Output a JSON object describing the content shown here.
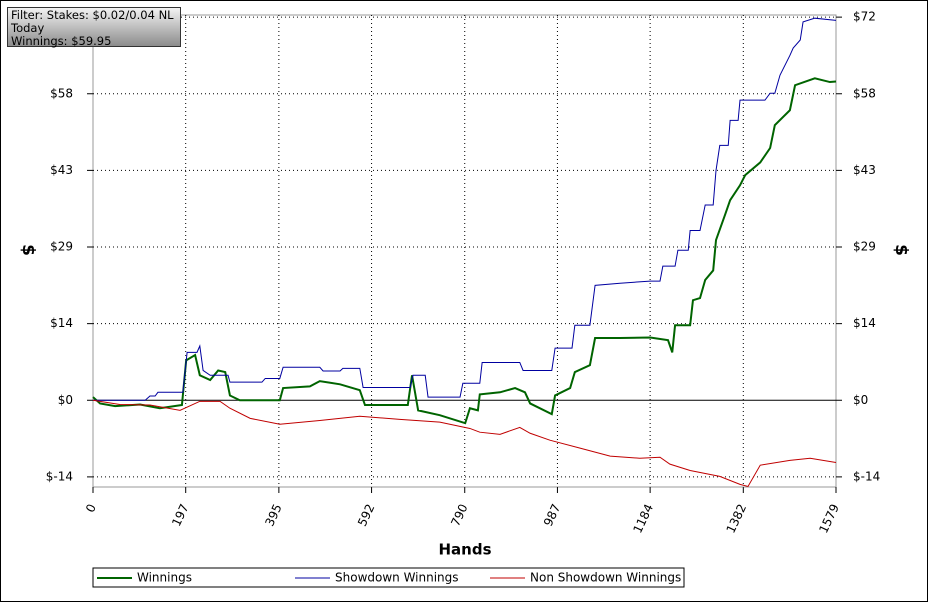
{
  "chart_data": {
    "type": "line",
    "filter_lines": [
      "Filter: Stakes: $0.02/0.04 NL",
      "Today",
      "Winnings: $59.95"
    ],
    "xlabel": "Hands",
    "ylabel": "$",
    "y2label": "$",
    "xlim": [
      0,
      1579
    ],
    "xticks": [
      0,
      197,
      395,
      592,
      790,
      987,
      1184,
      1382,
      1579
    ],
    "ylim": [
      -16.3,
      72.4
    ],
    "yticks": [
      {
        "value": -14.4,
        "label": "$-14"
      },
      {
        "value": 0,
        "label": "$0"
      },
      {
        "value": 14.4,
        "label": "$14"
      },
      {
        "value": 28.8,
        "label": "$29"
      },
      {
        "value": 43.2,
        "label": "$43"
      },
      {
        "value": 57.6,
        "label": "$58"
      },
      {
        "value": 72,
        "label": "$72"
      }
    ],
    "y2lim": [
      -16.3,
      72.4
    ],
    "y2ticks": [
      {
        "value": -14.4,
        "label": "$-14"
      },
      {
        "value": 0,
        "label": "$0"
      },
      {
        "value": 14.4,
        "label": "$14"
      },
      {
        "value": 28.8,
        "label": "$29"
      },
      {
        "value": 43.2,
        "label": "$43"
      },
      {
        "value": 57.6,
        "label": "$58"
      },
      {
        "value": 72,
        "label": "$72"
      }
    ],
    "grid": true,
    "series": [
      {
        "name": "Winnings",
        "color": "#006400",
        "width": 2,
        "x": [
          0,
          15,
          47,
          100,
          142,
          189,
          198,
          217,
          227,
          249,
          266,
          281,
          291,
          312,
          397,
          404,
          461,
          482,
          525,
          567,
          578,
          669,
          678,
          691,
          737,
          791,
          801,
          818,
          822,
          865,
          897,
          918,
          929,
          975,
          982,
          1014,
          1024,
          1056,
          1067,
          1120,
          1184,
          1222,
          1231,
          1237,
          1269,
          1275,
          1290,
          1301,
          1318,
          1324,
          1343,
          1354,
          1375,
          1386,
          1418,
          1439,
          1449,
          1481,
          1492,
          1534,
          1566,
          1579
        ],
        "values": [
          0.6,
          -0.6,
          -1.1,
          -0.8,
          -1.5,
          -0.9,
          7.5,
          8.5,
          4.7,
          3.8,
          5.6,
          5.3,
          0.9,
          0,
          0,
          2.3,
          2.6,
          3.6,
          3,
          1.9,
          -0.9,
          -0.9,
          4.7,
          -1.9,
          -2.8,
          -4.3,
          -1.5,
          -1.9,
          1.1,
          1.5,
          2.3,
          1.5,
          -0.6,
          -2.6,
          0.9,
          2.3,
          5.3,
          6.6,
          11.7,
          11.7,
          11.8,
          11.3,
          9,
          14.1,
          14.1,
          18.8,
          19.2,
          22.6,
          24.4,
          30.1,
          34.8,
          37.6,
          40.4,
          42.3,
          44.7,
          47.4,
          51.7,
          54.5,
          59.2,
          60.5,
          59.8,
          59.9
        ]
      },
      {
        "name": "Showdown Winnings",
        "color": "#0000a0",
        "width": 1,
        "x": [
          0,
          111,
          121,
          132,
          138,
          191,
          200,
          221,
          227,
          234,
          249,
          287,
          291,
          359,
          366,
          397,
          404,
          482,
          489,
          525,
          531,
          567,
          574,
          674,
          680,
          706,
          712,
          780,
          786,
          822,
          827,
          907,
          914,
          975,
          982,
          1018,
          1024,
          1056,
          1067,
          1120,
          1184,
          1205,
          1211,
          1237,
          1243,
          1265,
          1269,
          1290,
          1301,
          1318,
          1324,
          1332,
          1350,
          1354,
          1371,
          1375,
          1428,
          1439,
          1449,
          1460,
          1481,
          1488,
          1503,
          1509,
          1534,
          1579
        ],
        "values": [
          0,
          0,
          0.8,
          0.8,
          1.5,
          1.5,
          9,
          9,
          10.2,
          5.6,
          4.7,
          4.7,
          3.4,
          3.4,
          4.1,
          4.1,
          6.2,
          6.2,
          5.5,
          5.5,
          6,
          6,
          2.4,
          2.4,
          4.7,
          4.7,
          0.6,
          0.6,
          3.2,
          3.2,
          7.1,
          7.1,
          5.6,
          5.6,
          9.8,
          9.8,
          14.1,
          14.1,
          21.6,
          22,
          22.4,
          22.4,
          25.2,
          25.2,
          28.2,
          28.2,
          31.9,
          31.9,
          36.7,
          36.7,
          43.2,
          47.9,
          47.9,
          52.6,
          52.6,
          56.4,
          56.4,
          57.7,
          57.7,
          61.1,
          64.8,
          66.2,
          67.7,
          71.1,
          71.8,
          71.4
        ]
      },
      {
        "name": "Non Showdown Winnings",
        "color": "#c00000",
        "width": 1,
        "x": [
          0,
          57,
          121,
          185,
          227,
          270,
          291,
          334,
          397,
          482,
          567,
          652,
          737,
          801,
          822,
          865,
          907,
          929,
          971,
          1035,
          1099,
          1162,
          1205,
          1226,
          1269,
          1332,
          1375,
          1392,
          1418,
          1481,
          1524,
          1579
        ],
        "values": [
          0,
          -0.8,
          -0.9,
          -1.9,
          -0.2,
          -0.2,
          -1.5,
          -3.4,
          -4.5,
          -3.8,
          -3,
          -3.6,
          -4.1,
          -5.3,
          -6,
          -6.4,
          -5.1,
          -6.2,
          -7.5,
          -9,
          -10.5,
          -10.9,
          -10.7,
          -12,
          -13.2,
          -14.3,
          -15.8,
          -16.2,
          -12.2,
          -11.3,
          -10.9,
          -11.7
        ]
      }
    ]
  }
}
